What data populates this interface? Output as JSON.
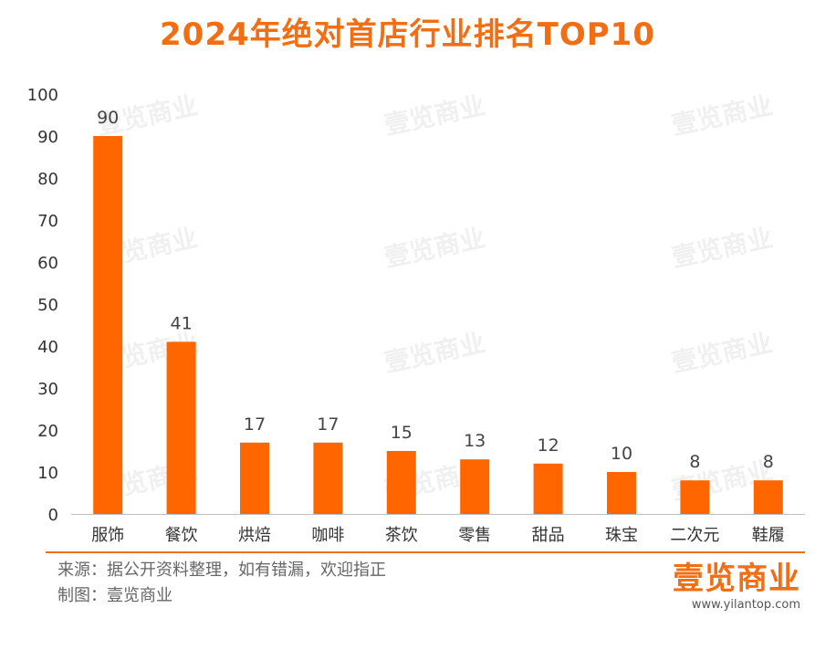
{
  "title": "2024年绝对首店行业排名TOP10",
  "chart_data": {
    "type": "bar",
    "title": "2024年绝对首店行业排名TOP10",
    "categories": [
      "服饰",
      "餐饮",
      "烘焙",
      "咖啡",
      "茶饮",
      "零售",
      "甜品",
      "珠宝",
      "二次元",
      "鞋履"
    ],
    "values": [
      90,
      41,
      17,
      17,
      15,
      13,
      12,
      10,
      8,
      8
    ],
    "ylim": [
      0,
      100
    ],
    "yticks": [
      0,
      10,
      20,
      30,
      40,
      50,
      60,
      70,
      80,
      90,
      100
    ],
    "grid": false,
    "bar_color": "#ff6600",
    "data_labels": true
  },
  "watermark": "壹览商业",
  "footer": {
    "source": "来源：据公开资料整理，如有错漏，欢迎指正",
    "credit": "制图：壹览商业"
  },
  "brand": {
    "logo": "壹览商业",
    "url": "www.yilantop.com"
  },
  "colors": {
    "accent": "#f36d12",
    "bar": "#ff6600"
  }
}
